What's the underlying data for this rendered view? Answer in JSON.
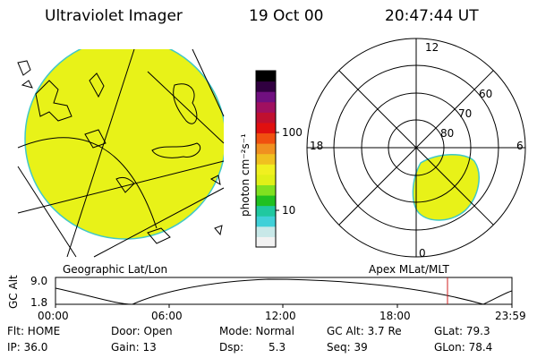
{
  "header": {
    "title": "Ultraviolet Imager",
    "date": "19 Oct 00",
    "time": "20:47:44 UT"
  },
  "left_panel": {
    "caption": "Geographic Lat/Lon",
    "fill_color": "#e8f218"
  },
  "colorbar": {
    "unit_label": "photon cm⁻²s⁻¹",
    "tick_labels": [
      "100",
      "10"
    ],
    "colors": [
      "#f2f2f2",
      "#c8e8e8",
      "#40d0d8",
      "#20c8a0",
      "#20c020",
      "#80e020",
      "#e0f018",
      "#f0f020",
      "#f0c020",
      "#f09020",
      "#f05010",
      "#e01010",
      "#c01030",
      "#a01060",
      "#701080",
      "#300040",
      "#000000"
    ]
  },
  "polar_panel": {
    "caption": "Apex MLat/MLT",
    "mlt_labels": {
      "top": "12",
      "left": "18",
      "right": "6",
      "bottom": "0"
    },
    "lat_labels": [
      "60",
      "70",
      "80"
    ],
    "fill_color": "#e8f218"
  },
  "timeline": {
    "axis_label": "GC Alt",
    "y_ticks": [
      "9.0",
      "1.8"
    ],
    "x_ticks": [
      "00:00",
      "06:00",
      "12:00",
      "18:00",
      "23:59"
    ],
    "marker_color": "#d02020"
  },
  "status": {
    "flt": "Flt: HOME",
    "ip": "IP: 36.0",
    "door": "Door: Open",
    "gain": "Gain: 13",
    "mode": "Mode: Normal",
    "dsp_label": "Dsp:",
    "dsp_value": "5.3",
    "gc_alt": "GC Alt: 3.7 Re",
    "seq": "Seq: 39",
    "glat": "GLat: 79.3",
    "glon": "GLon: 78.4"
  }
}
